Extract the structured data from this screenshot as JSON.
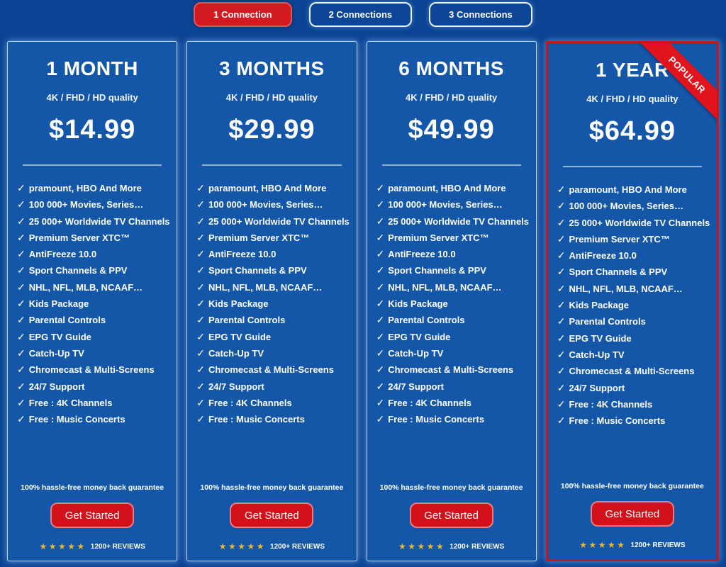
{
  "colors": {
    "page_background": "#0b4494",
    "card_background": "#1457a9",
    "accent_red": "#d31a21",
    "popular_border_red": "#c8141e",
    "star_gold": "#e7b832",
    "divider_blue": "#8fb3da"
  },
  "icons": {
    "check": "✓",
    "stars": "★★★★★"
  },
  "tabs": [
    {
      "label": "1 Connection",
      "active": true
    },
    {
      "label": "2 Connections",
      "active": false
    },
    {
      "label": "3 Connections",
      "active": false
    }
  ],
  "shared": {
    "quality": "4K / FHD / HD quality",
    "guarantee": "100% hassle-free money back guarantee",
    "cta": "Get Started",
    "reviews": "1200+ REVIEWS"
  },
  "cards": [
    {
      "title": "1 MONTH",
      "price": "$14.99",
      "features": [
        "pramount, HBO And More",
        "100 000+ Movies, Series…",
        "25 000+ Worldwide TV Channels",
        "Premium Server XTC™",
        "AntiFreeze 10.0",
        "Sport Channels & PPV",
        "NHL, NFL, MLB, NCAAF…",
        "Kids Package",
        "Parental Controls",
        "EPG TV Guide",
        "Catch-Up TV",
        "Chromecast & Multi-Screens",
        "24/7 Support",
        "Free : 4K Channels",
        "Free : Music Concerts"
      ]
    },
    {
      "title": "3 MONTHS",
      "price": "$29.99",
      "features": [
        "paramount, HBO And More",
        "100 000+ Movies, Series…",
        "25 000+ Worldwide TV Channels",
        "Premium Server XTC™",
        "AntiFreeze 10.0",
        "Sport Channels & PPV",
        "NHL, NFL, MLB, NCAAF…",
        "Kids Package",
        "Parental Controls",
        "EPG TV Guide",
        "Catch-Up TV",
        "Chromecast & Multi-Screens",
        "24/7 Support",
        "Free : 4K Channels",
        "Free : Music Concerts"
      ]
    },
    {
      "title": "6 MONTHS",
      "price": "$49.99",
      "features": [
        "paramount, HBO And More",
        "100 000+ Movies, Series…",
        "25 000+ Worldwide TV Channels",
        "Premium Server XTC™",
        "AntiFreeze 10.0",
        "Sport Channels & PPV",
        "NHL, NFL, MLB, NCAAF…",
        "Kids Package",
        "Parental Controls",
        "EPG TV Guide",
        "Catch-Up TV",
        "Chromecast & Multi-Screens",
        "24/7 Support",
        "Free : 4K Channels",
        "Free : Music Concerts"
      ]
    },
    {
      "title": "1 YEAR",
      "price": "$64.99",
      "ribbon": "POPULAR",
      "features": [
        "paramount, HBO And More",
        "100 000+ Movies, Series…",
        "25 000+ Worldwide TV Channels",
        "Premium Server XTC™",
        "AntiFreeze 10.0",
        "Sport Channels & PPV",
        "NHL, NFL, MLB, NCAAF…",
        "Kids Package",
        "Parental Controls",
        "EPG TV Guide",
        "Catch-Up TV",
        "Chromecast & Multi-Screens",
        "24/7 Support",
        "Free : 4K Channels",
        "Free : Music Concerts"
      ]
    }
  ]
}
